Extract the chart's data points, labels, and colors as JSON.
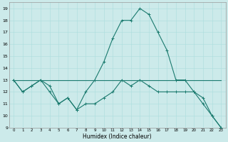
{
  "xlabel": "Humidex (Indice chaleur)",
  "bg_color": "#cceaea",
  "line_color": "#1a7a6e",
  "xlim": [
    -0.5,
    23.5
  ],
  "ylim": [
    9,
    19.5
  ],
  "yticks": [
    9,
    10,
    11,
    12,
    13,
    14,
    15,
    16,
    17,
    18,
    19
  ],
  "xticks": [
    0,
    1,
    2,
    3,
    4,
    5,
    6,
    7,
    8,
    9,
    10,
    11,
    12,
    13,
    14,
    15,
    16,
    17,
    18,
    19,
    20,
    21,
    22,
    23
  ],
  "line_upper": {
    "x": [
      0,
      1,
      2,
      3,
      4,
      5,
      6,
      7,
      8,
      9,
      10,
      11,
      12,
      13,
      14,
      15,
      16,
      17,
      18,
      19,
      20,
      21,
      22,
      23
    ],
    "y": [
      13,
      12,
      12.5,
      13,
      12.5,
      11,
      11.5,
      10.5,
      12,
      13,
      14.5,
      16.5,
      18,
      18,
      19,
      18.5,
      17,
      15.5,
      13,
      13,
      12,
      11,
      10,
      9
    ]
  },
  "line_lower": {
    "x": [
      0,
      1,
      2,
      3,
      4,
      5,
      6,
      7,
      8,
      9,
      10,
      11,
      12,
      13,
      14,
      15,
      16,
      17,
      18,
      19,
      20,
      21,
      22,
      23
    ],
    "y": [
      13,
      12,
      12.5,
      13,
      12,
      11,
      11.5,
      10.5,
      11,
      11,
      11.5,
      12,
      13,
      12.5,
      13,
      12.5,
      12,
      12,
      12,
      12,
      12,
      11.5,
      10,
      9
    ]
  },
  "line_flat": {
    "x": [
      0,
      23
    ],
    "y": [
      13,
      13
    ]
  }
}
